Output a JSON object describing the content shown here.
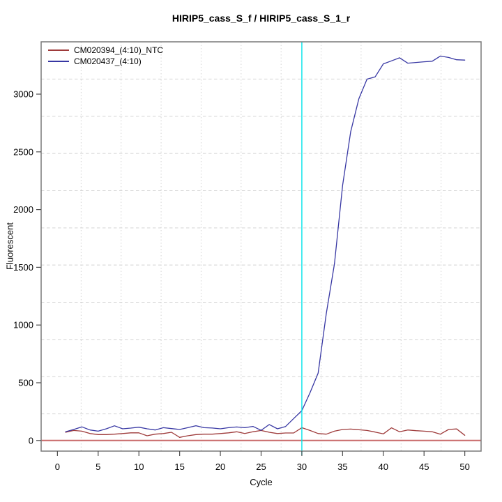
{
  "title": "HIRIP5_cass_S_f / HIRIP5_cass_S_1_r",
  "axes": {
    "x_label": "Cycle",
    "y_label": "Fluorescent",
    "x_ticks": [
      0,
      5,
      10,
      15,
      20,
      25,
      30,
      35,
      40,
      45,
      50
    ],
    "y_ticks": [
      0,
      500,
      1000,
      1500,
      2000,
      2500,
      3000
    ],
    "x_range": [
      -2,
      52
    ],
    "y_range": [
      -92,
      3453
    ]
  },
  "legend": {
    "items": [
      {
        "label": "CM020394_(4:10)_NTC",
        "color": "#9e3a3a"
      },
      {
        "label": "CM020437_(4:10)",
        "color": "#3737a3"
      }
    ]
  },
  "chart_data": {
    "type": "line",
    "title": "HIRIP5_cass_S_f / HIRIP5_cass_S_1_r",
    "xlabel": "Cycle",
    "ylabel": "Fluorescent",
    "xlim": [
      -2,
      52
    ],
    "ylim": [
      -92,
      3453
    ],
    "x": [
      1,
      2,
      3,
      4,
      5,
      6,
      7,
      8,
      9,
      10,
      11,
      12,
      13,
      14,
      15,
      16,
      17,
      18,
      19,
      20,
      21,
      22,
      23,
      24,
      25,
      26,
      27,
      28,
      29,
      30,
      31,
      32,
      33,
      34,
      35,
      36,
      37,
      38,
      39,
      40,
      41,
      42,
      43,
      44,
      45,
      46,
      47,
      48,
      49,
      50
    ],
    "series": [
      {
        "name": "CM020394_(4:10)_NTC",
        "color": "#9e3a3a",
        "values": [
          71,
          87,
          81,
          60,
          51,
          51,
          55,
          60,
          66,
          66,
          41,
          55,
          60,
          71,
          27,
          41,
          51,
          55,
          55,
          60,
          66,
          75,
          60,
          75,
          87,
          71,
          60,
          65,
          65,
          111,
          87,
          60,
          55,
          81,
          95,
          99,
          93,
          87,
          73,
          57,
          110,
          75,
          91,
          85,
          81,
          75,
          55,
          95,
          100,
          45
        ]
      },
      {
        "name": "CM020437_(4:10)",
        "color": "#3737a3",
        "values": [
          75,
          95,
          118,
          91,
          81,
          101,
          127,
          101,
          107,
          115,
          101,
          91,
          111,
          103,
          95,
          111,
          128,
          111,
          108,
          101,
          111,
          117,
          111,
          122,
          88,
          138,
          101,
          121,
          190,
          258,
          413,
          584,
          1100,
          1530,
          2210,
          2675,
          2960,
          3130,
          3150,
          3262,
          3288,
          3315,
          3268,
          3274,
          3280,
          3285,
          3330,
          3318,
          3298,
          3295
        ]
      }
    ],
    "threshold_line": {
      "x": 30,
      "color": "#00e3ea"
    },
    "zero_line": {
      "y": 0,
      "color": "#c96a6a"
    },
    "grid": {
      "nx": 11,
      "ny": 11,
      "color": "#d4d4d4",
      "on": true,
      "legend_position": "top-left"
    }
  },
  "frame": {
    "box_color": "#787878",
    "tick_color": "#4d4d4d",
    "text_color": "#000000"
  }
}
